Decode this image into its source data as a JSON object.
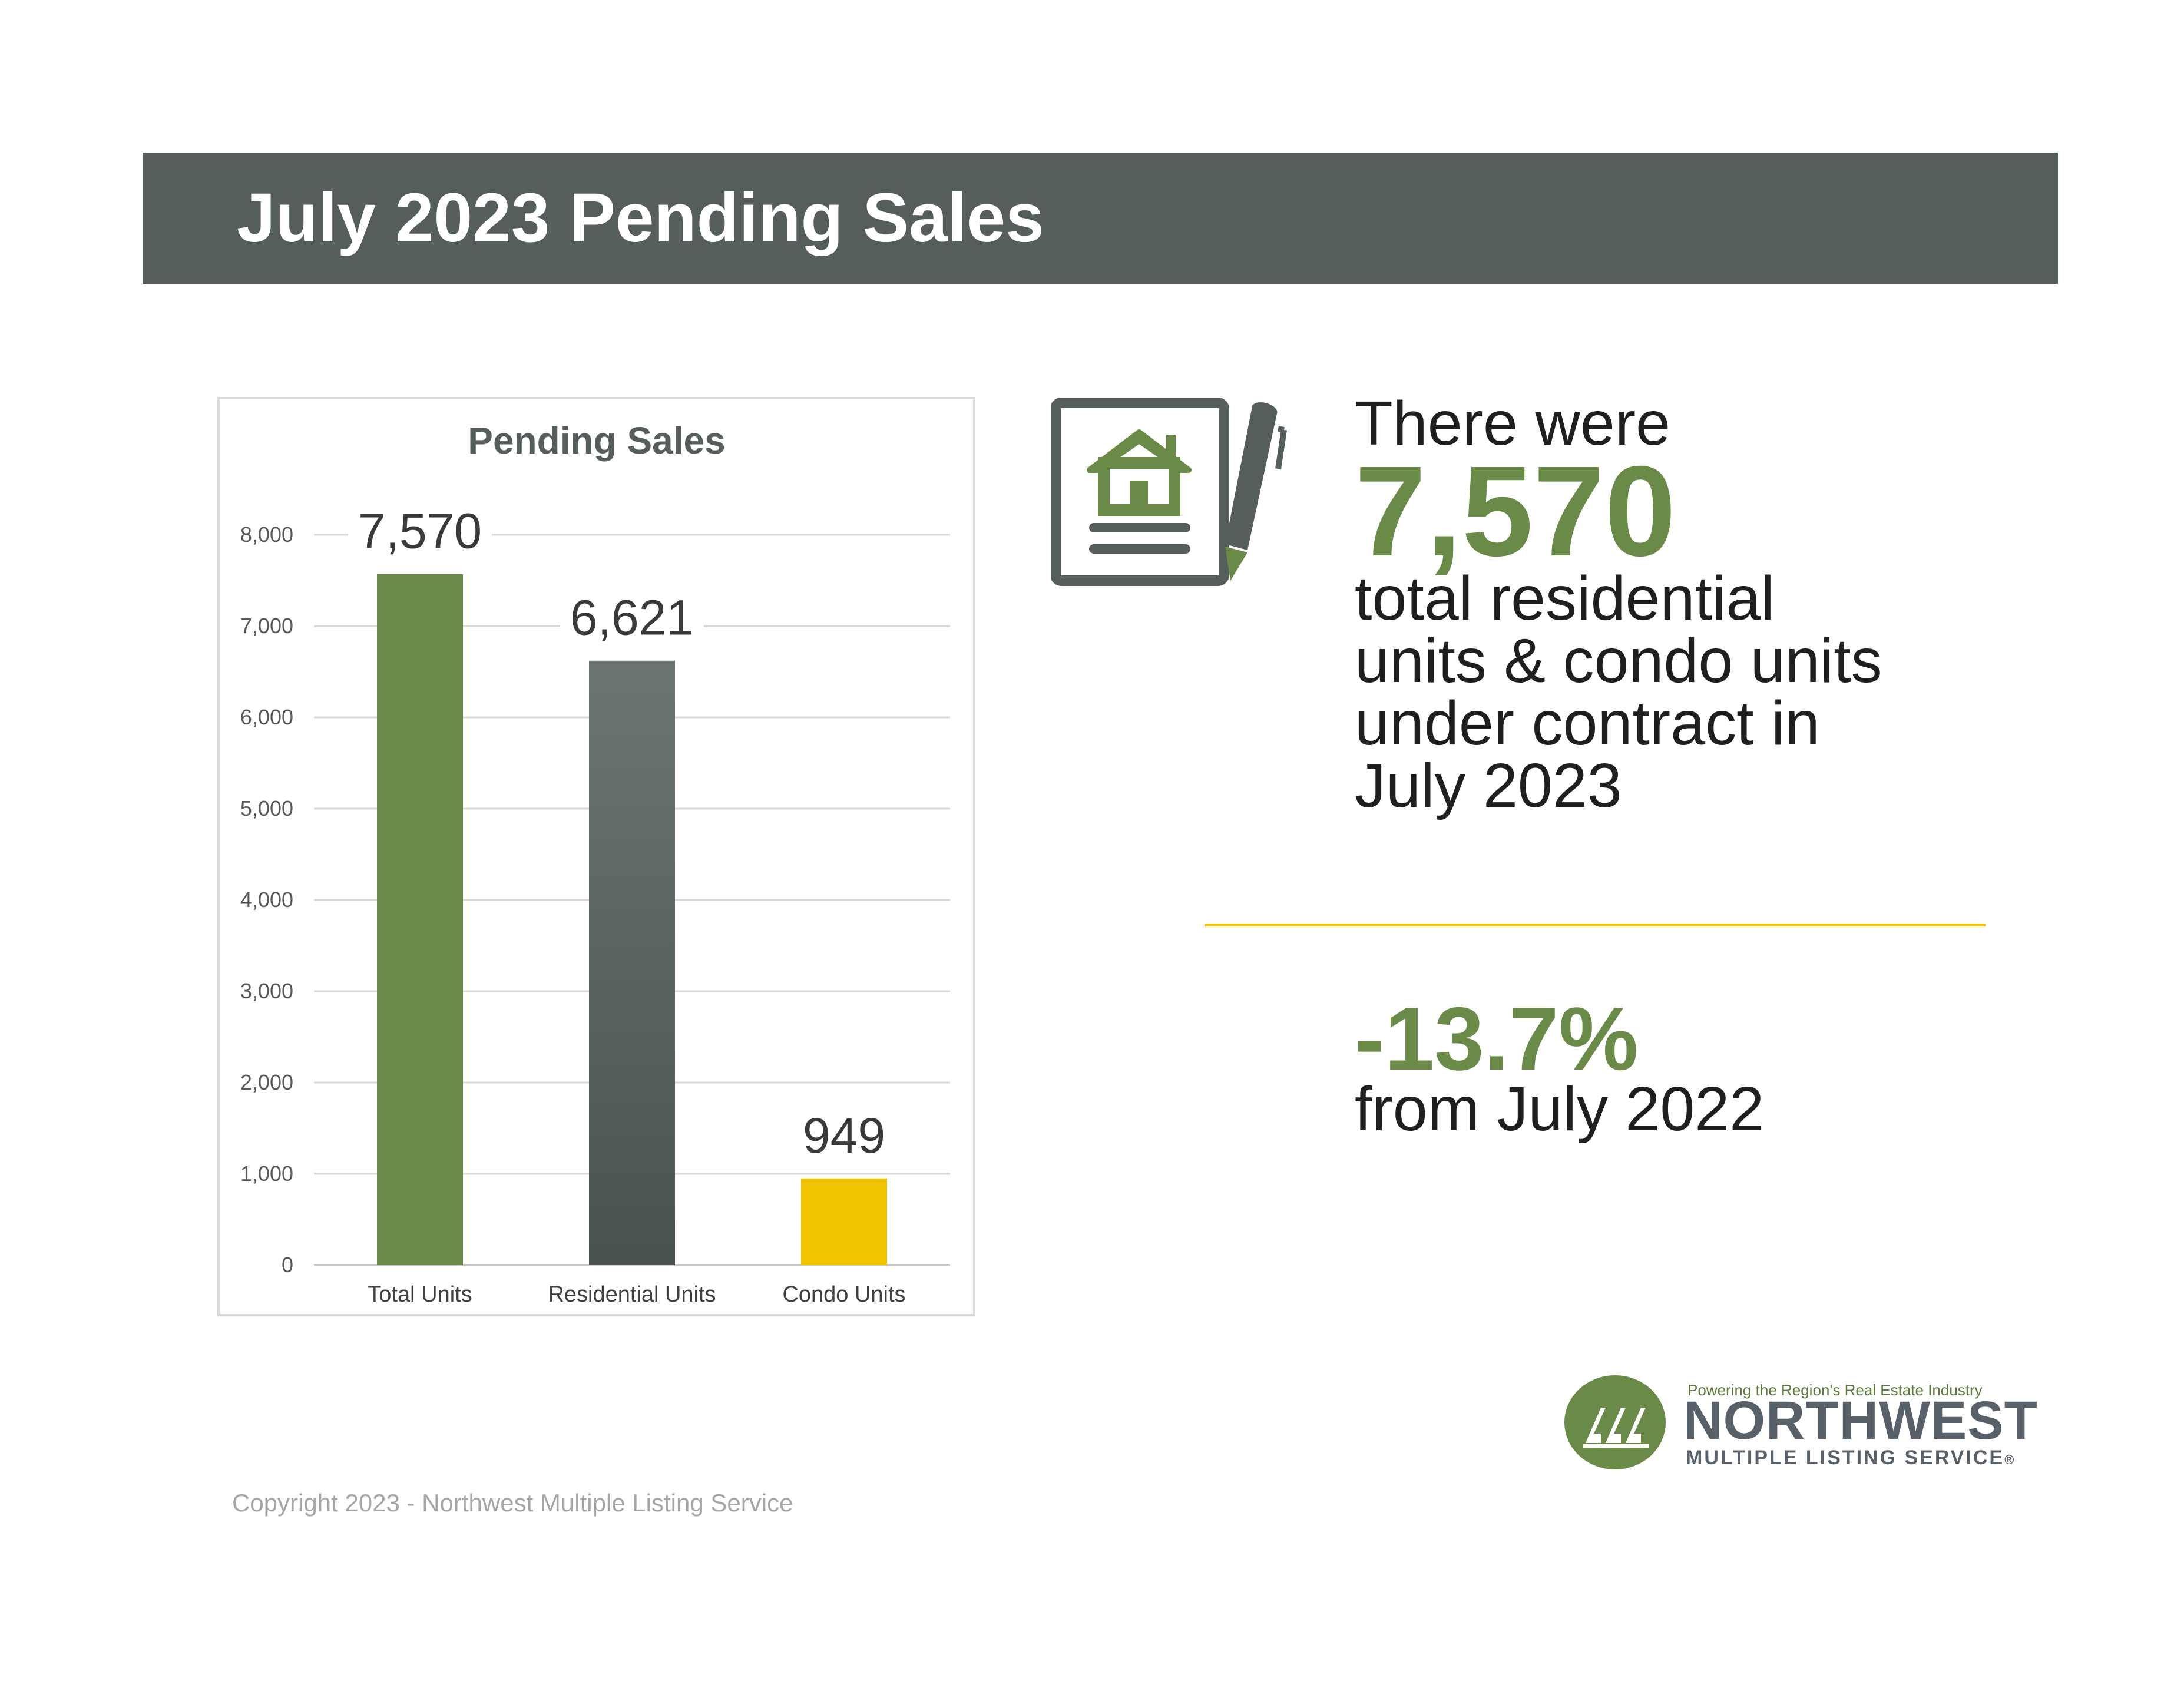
{
  "header": {
    "title": "July 2023 Pending Sales"
  },
  "chart_data": {
    "type": "bar",
    "title": "Pending Sales",
    "categories": [
      "Total Units",
      "Residential Units",
      "Condo Units"
    ],
    "values": [
      7570,
      6621,
      949
    ],
    "data_labels": [
      "7,570",
      "6,621",
      "949"
    ],
    "colors": [
      "#6a8a47",
      "#5d6562",
      "#f0c400"
    ],
    "ylim": [
      0,
      8000
    ],
    "yticks": [
      0,
      1000,
      2000,
      3000,
      4000,
      5000,
      6000,
      7000,
      8000
    ],
    "ytick_labels": [
      "0",
      "1,000",
      "2,000",
      "3,000",
      "4,000",
      "5,000",
      "6,000",
      "7,000",
      "8,000"
    ],
    "grid": true,
    "xlabel": "",
    "ylabel": ""
  },
  "stats": {
    "intro": "There were",
    "total": "7,570",
    "description_lines": [
      "total residential",
      "units & condo units",
      "under contract in",
      "July 2023"
    ],
    "change": "-13.7%",
    "change_from": "from July 2022"
  },
  "logo": {
    "tagline": "Powering the Region's Real Estate Industry",
    "name": "NORTHWEST",
    "subname": "MULTIPLE LISTING SERVICE",
    "registered": "®"
  },
  "footer": {
    "copyright": "Copyright 2023 - Northwest Multiple Listing Service"
  },
  "icons": [
    "house-document-icon",
    "pen-icon",
    "logo-mark-icon"
  ],
  "colors": {
    "header_bg": "#555e5c",
    "accent_green": "#6a8a47",
    "accent_yellow": "#f1c40f",
    "text_gray": "#58606a"
  }
}
